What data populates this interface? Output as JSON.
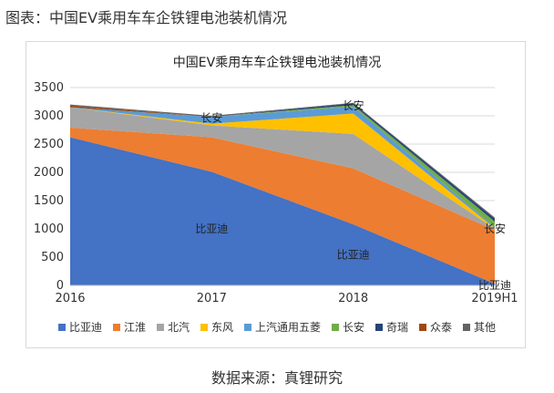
{
  "caption": "图表：中国EV乘用车车企铁锂电池装机情况",
  "source": "数据来源：真锂研究",
  "chart_data": {
    "type": "area",
    "stacked": true,
    "title": "中国EV乘用车车企铁锂电池装机情况",
    "categories": [
      "2016",
      "2017",
      "2018",
      "2019H1"
    ],
    "ylim": [
      0,
      3500
    ],
    "yticks": [
      0,
      500,
      1000,
      1500,
      2000,
      2500,
      3000,
      3500
    ],
    "grid": true,
    "legend_position": "bottom",
    "series": [
      {
        "name": "比亚迪",
        "color": "#4472C4",
        "values": [
          2620,
          2010,
          1080,
          30
        ]
      },
      {
        "name": "江淮",
        "color": "#ED7D31",
        "values": [
          170,
          610,
          990,
          950
        ]
      },
      {
        "name": "北汽",
        "color": "#A5A5A5",
        "values": [
          360,
          210,
          610,
          20
        ]
      },
      {
        "name": "东风",
        "color": "#FFC000",
        "values": [
          0,
          30,
          360,
          10
        ]
      },
      {
        "name": "上汽通用五菱",
        "color": "#5B9BD5",
        "values": [
          0,
          120,
          120,
          20
        ]
      },
      {
        "name": "长安",
        "color": "#70AD47",
        "values": [
          0,
          0,
          30,
          100
        ]
      },
      {
        "name": "奇瑞",
        "color": "#264478",
        "values": [
          0,
          0,
          30,
          50
        ]
      },
      {
        "name": "众泰",
        "color": "#9E480E",
        "values": [
          30,
          0,
          0,
          0
        ]
      },
      {
        "name": "其他",
        "color": "#636363",
        "values": [
          20,
          20,
          10,
          20
        ]
      }
    ],
    "annotations": [
      {
        "text": "比亚迪",
        "category": "2017",
        "value": 1000
      },
      {
        "text": "比亚迪",
        "category": "2018",
        "value": 540
      },
      {
        "text": "比亚迪",
        "category": "2019H1",
        "value": 0
      },
      {
        "text": "长安",
        "category": "2017",
        "value": 2960
      },
      {
        "text": "长安",
        "category": "2018",
        "value": 3180
      },
      {
        "text": "长安",
        "category": "2019H1",
        "value": 1000
      }
    ]
  }
}
